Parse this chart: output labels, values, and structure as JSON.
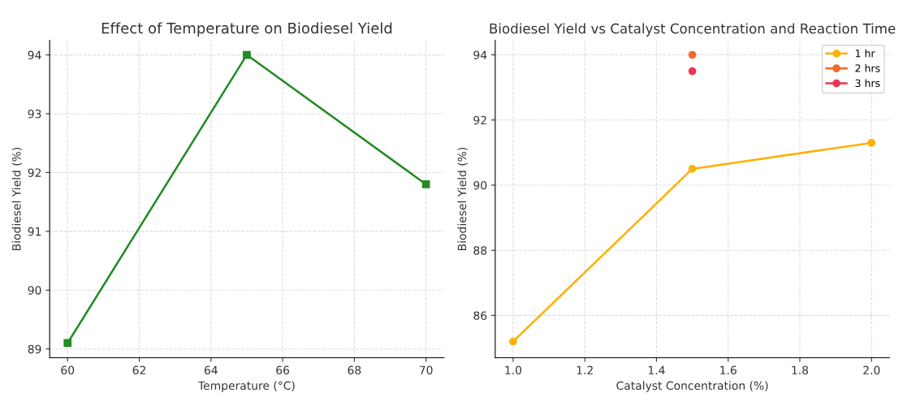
{
  "chart_data": [
    {
      "type": "line",
      "title": "Effect of Temperature on Biodiesel Yield",
      "xlabel": "Temperature (°C)",
      "ylabel": "Biodiesel Yield (%)",
      "x": [
        60,
        65,
        70
      ],
      "series": [
        {
          "color": "#228b22",
          "values": [
            89.1,
            94.0,
            91.8
          ]
        }
      ],
      "xlim": [
        59.5,
        70.5
      ],
      "xticks": [
        60,
        62,
        64,
        66,
        68,
        70
      ],
      "ylim": [
        88.85,
        94.25
      ],
      "yticks": [
        89,
        90,
        91,
        92,
        93,
        94
      ],
      "grid": true,
      "marker": "square",
      "line_style": "solid",
      "legend": false
    },
    {
      "type": "line",
      "title": "Biodiesel Yield vs Catalyst Concentration and Reaction Time",
      "xlabel": "Catalyst Concentration (%)",
      "ylabel": "Biodiesel Yield (%)",
      "series": [
        {
          "name": "1 hr",
          "color": "#ffb000",
          "x": [
            1.0,
            1.5,
            2.0
          ],
          "values": [
            85.2,
            90.5,
            91.3
          ]
        },
        {
          "name": "2 hrs",
          "color": "#f26b2a",
          "x": [
            1.5
          ],
          "values": [
            94.0
          ]
        },
        {
          "name": "3 hrs",
          "color": "#ef3456",
          "x": [
            1.5
          ],
          "values": [
            93.5
          ]
        }
      ],
      "xlim": [
        0.95,
        2.05
      ],
      "xticks": [
        {
          "value": 1.0,
          "label": "1.0"
        },
        {
          "value": 1.2,
          "label": "1.2"
        },
        {
          "value": 1.4,
          "label": "1.4"
        },
        {
          "value": 1.6,
          "label": "1.6"
        },
        {
          "value": 1.8,
          "label": "1.8"
        },
        {
          "value": 2.0,
          "label": "2.0"
        }
      ],
      "ylim": [
        84.7,
        94.45
      ],
      "yticks": [
        86,
        88,
        90,
        92,
        94
      ],
      "grid": true,
      "marker": "circle",
      "line_style": "solid",
      "legend": "top right"
    }
  ]
}
